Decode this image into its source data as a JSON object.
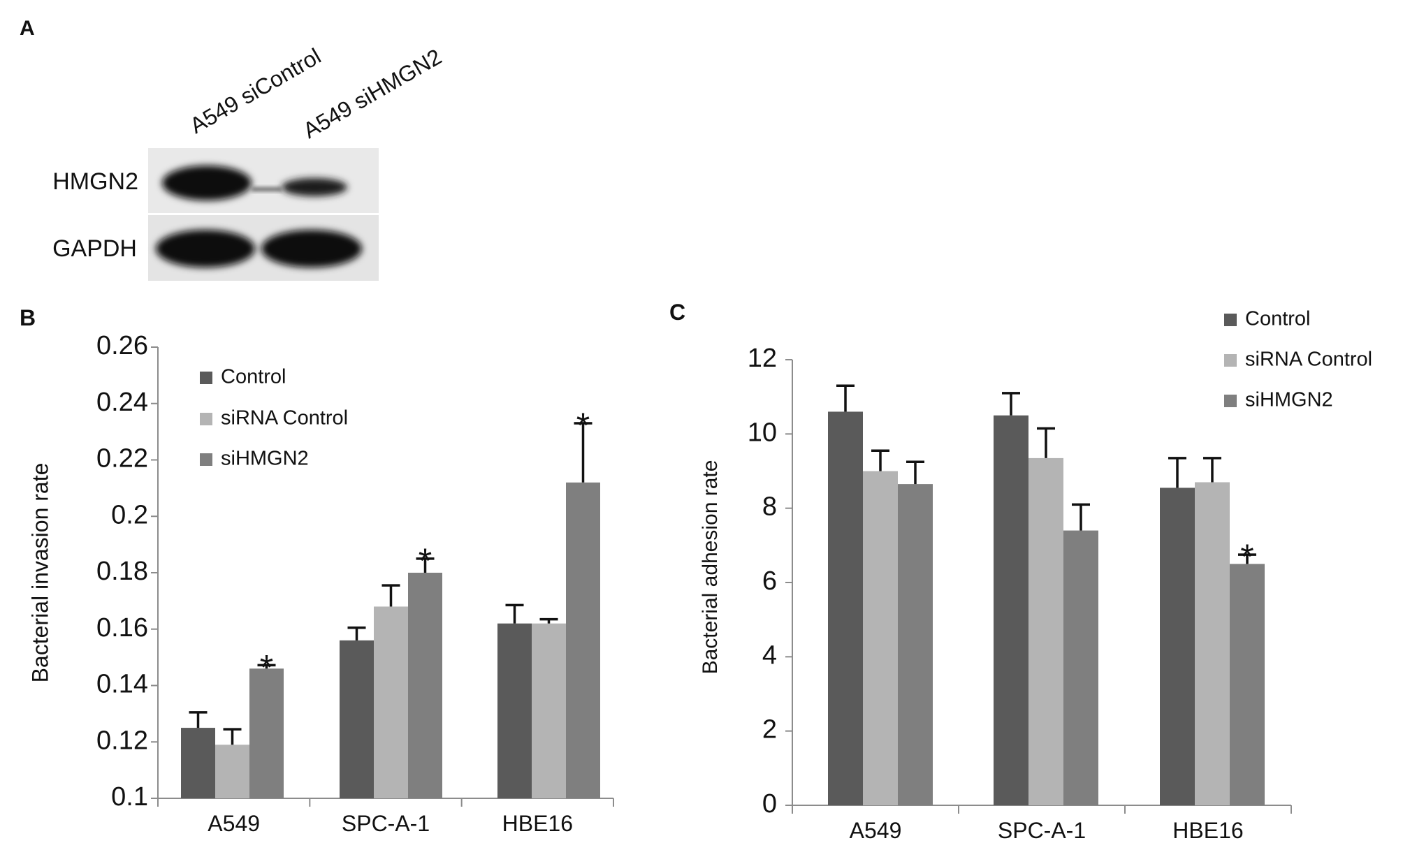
{
  "panel_a": {
    "letter": "A",
    "lane_labels": [
      "A549 siControl",
      "A549 siHMGN2"
    ],
    "row_labels": [
      "HMGN2",
      "GAPDH"
    ]
  },
  "chart_data": [
    {
      "panel": "B",
      "type": "bar",
      "ylabel": "Bacterial invasion rate",
      "xlabel": "",
      "categories": [
        "A549",
        "SPC-A-1",
        "HBE16"
      ],
      "ylim": [
        0.1,
        0.26
      ],
      "yticks": [
        0.1,
        0.12,
        0.14,
        0.16,
        0.18,
        0.2,
        0.22,
        0.24,
        0.26
      ],
      "ytick_labels": [
        "0.1",
        "0.12",
        "0.14",
        "0.16",
        "0.18",
        "0.2",
        "0.22",
        "0.24",
        "0.26"
      ],
      "legend_position": "top-left",
      "grid": false,
      "series": [
        {
          "name": "Control",
          "color": "#5a5a5a",
          "values": [
            0.125,
            0.156,
            0.162
          ],
          "errors": [
            0.0055,
            0.0045,
            0.0065
          ]
        },
        {
          "name": "siRNA Control",
          "color": "#b4b4b4",
          "values": [
            0.119,
            0.168,
            0.162
          ],
          "errors": [
            0.0055,
            0.0075,
            0.0015
          ]
        },
        {
          "name": "siHMGN2",
          "color": "#7f7f7f",
          "values": [
            0.146,
            0.18,
            0.212
          ],
          "errors": [
            0.0012,
            0.005,
            0.021
          ]
        }
      ],
      "annotations": [
        {
          "series": "siHMGN2",
          "category": "A549",
          "text": "*"
        },
        {
          "series": "siHMGN2",
          "category": "SPC-A-1",
          "text": "*"
        },
        {
          "series": "siHMGN2",
          "category": "HBE16",
          "text": "*"
        }
      ]
    },
    {
      "panel": "C",
      "type": "bar",
      "ylabel": "Bacterial adhesion rate",
      "xlabel": "",
      "categories": [
        "A549",
        "SPC-A-1",
        "HBE16"
      ],
      "ylim": [
        0,
        12
      ],
      "yticks": [
        0,
        2,
        4,
        6,
        8,
        10,
        12
      ],
      "ytick_labels": [
        "0",
        "2",
        "4",
        "6",
        "8",
        "10",
        "12"
      ],
      "legend_position": "top-right",
      "grid": false,
      "series": [
        {
          "name": "Control",
          "color": "#5a5a5a",
          "values": [
            10.6,
            10.5,
            8.55
          ],
          "errors": [
            0.7,
            0.6,
            0.8
          ]
        },
        {
          "name": "siRNA Control",
          "color": "#b4b4b4",
          "values": [
            9.0,
            9.35,
            8.7
          ],
          "errors": [
            0.55,
            0.8,
            0.65
          ]
        },
        {
          "name": "siHMGN2",
          "color": "#7f7f7f",
          "values": [
            8.65,
            7.4,
            6.5
          ],
          "errors": [
            0.6,
            0.7,
            0.25
          ]
        }
      ],
      "annotations": [
        {
          "series": "siHMGN2",
          "category": "HBE16",
          "text": "*"
        }
      ]
    }
  ]
}
